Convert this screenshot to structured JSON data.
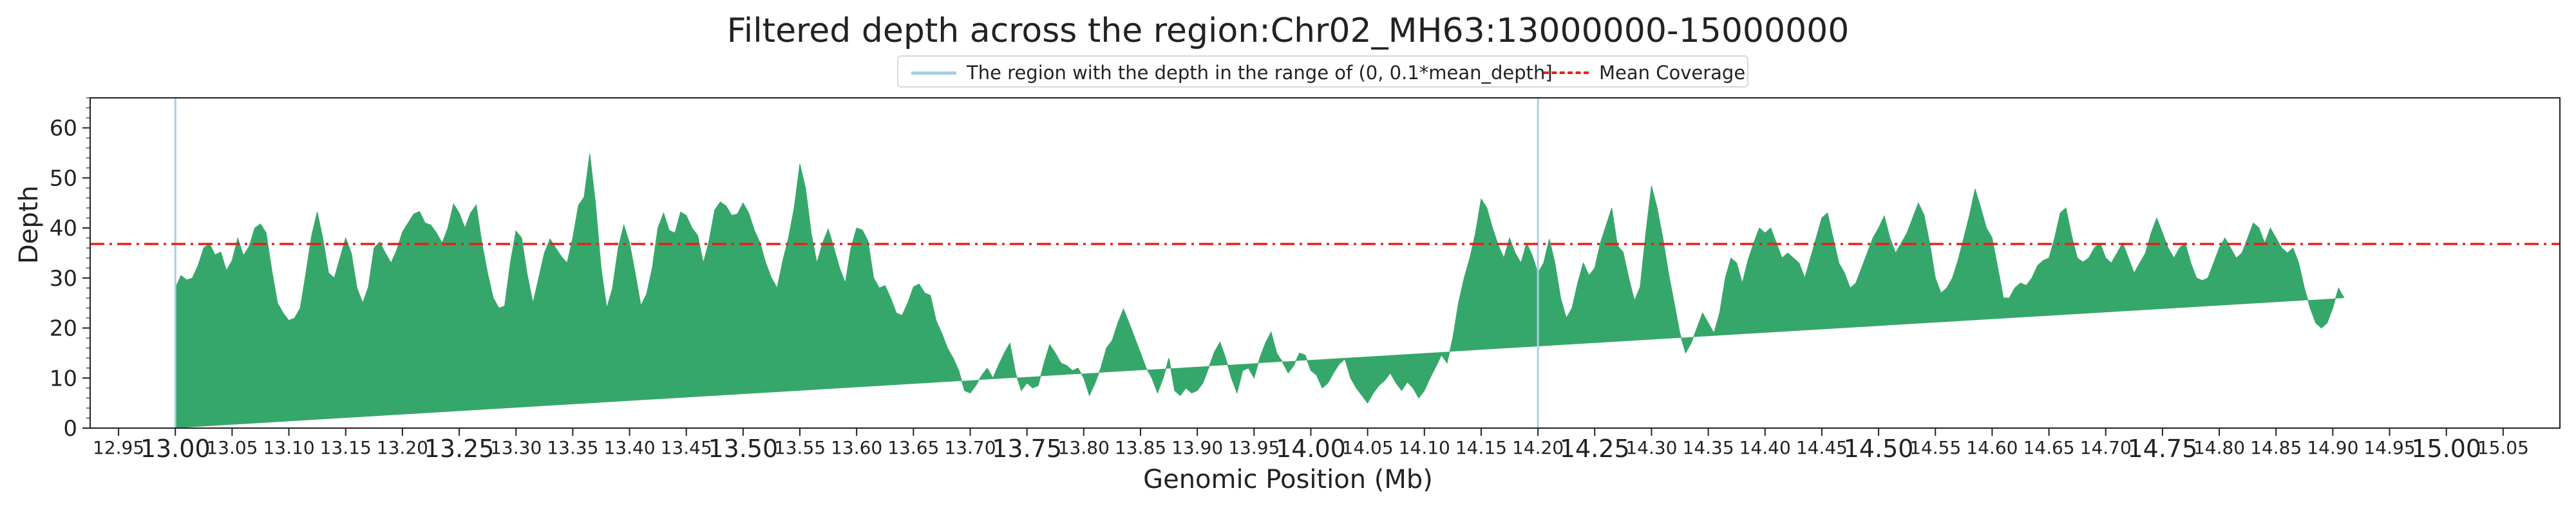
{
  "chart_data": {
    "type": "area",
    "title": "Filtered depth across the region:Chr02_MH63:13000000-15000000",
    "xlabel": "Genomic Position (Mb)",
    "ylabel": "Depth",
    "xlim": [
      12.925,
      15.1
    ],
    "ylim": [
      0,
      66
    ],
    "grid": false,
    "legend_placement": "upper center",
    "legend": [
      {
        "label": "The region with the depth in the range of (0, 0.1*mean_depth]",
        "color": "#a6cfe4",
        "style": "solid"
      },
      {
        "label": "Mean Coverage",
        "color": "#e8201d",
        "style": "dashdot"
      }
    ],
    "mean_coverage": 36.8,
    "fill_color": "#36a76a",
    "low_depth_positions": [
      13.0,
      14.2
    ],
    "y_ticks": [
      0,
      10,
      20,
      30,
      40,
      50,
      60
    ],
    "y_tick_labels": [
      "0",
      "10",
      "20",
      "30",
      "40",
      "50",
      "60"
    ],
    "x_ticks": [
      12.95,
      13.0,
      13.05,
      13.1,
      13.15,
      13.2,
      13.25,
      13.3,
      13.35,
      13.4,
      13.45,
      13.5,
      13.55,
      13.6,
      13.65,
      13.7,
      13.75,
      13.8,
      13.85,
      13.9,
      13.95,
      14.0,
      14.05,
      14.1,
      14.15,
      14.2,
      14.25,
      14.3,
      14.35,
      14.4,
      14.45,
      14.5,
      14.55,
      14.6,
      14.65,
      14.7,
      14.75,
      14.8,
      14.85,
      14.9,
      14.95,
      15.0,
      15.05
    ],
    "x_tick_labels": [
      "12.95",
      "13.00",
      "13.05",
      "13.10",
      "13.15",
      "13.20",
      "13.25",
      "13.30",
      "13.35",
      "13.40",
      "13.45",
      "13.50",
      "13.55",
      "13.60",
      "13.65",
      "13.70",
      "13.75",
      "13.80",
      "13.85",
      "13.90",
      "13.95",
      "14.00",
      "14.05",
      "14.10",
      "14.15",
      "14.20",
      "14.25",
      "14.30",
      "14.35",
      "14.40",
      "14.45",
      "14.50",
      "14.55",
      "14.60",
      "14.65",
      "14.70",
      "14.75",
      "14.80",
      "14.85",
      "14.90",
      "14.95",
      "15.00",
      "15.05"
    ],
    "x_tick_major": [
      "13.00",
      "13.25",
      "13.50",
      "13.75",
      "14.00",
      "14.25",
      "14.50",
      "14.75",
      "15.00"
    ],
    "x": [
      13.0,
      13.005,
      13.01,
      13.015,
      13.02,
      13.025,
      13.03,
      13.035,
      13.04,
      13.045,
      13.05,
      13.055,
      13.06,
      13.065,
      13.07,
      13.075,
      13.08,
      13.085,
      13.09,
      13.095,
      13.1,
      13.105,
      13.11,
      13.115,
      13.12,
      13.125,
      13.13,
      13.135,
      13.14,
      13.145,
      13.15,
      13.155,
      13.16,
      13.165,
      13.17,
      13.175,
      13.18,
      13.185,
      13.19,
      13.195,
      13.2,
      13.205,
      13.21,
      13.215,
      13.22,
      13.225,
      13.23,
      13.235,
      13.24,
      13.245,
      13.25,
      13.255,
      13.26,
      13.265,
      13.27,
      13.275,
      13.28,
      13.285,
      13.29,
      13.295,
      13.3,
      13.305,
      13.31,
      13.315,
      13.32,
      13.325,
      13.33,
      13.335,
      13.34,
      13.345,
      13.35,
      13.355,
      13.36,
      13.365,
      13.37,
      13.375,
      13.38,
      13.385,
      13.39,
      13.395,
      13.4,
      13.405,
      13.41,
      13.415,
      13.42,
      13.425,
      13.43,
      13.435,
      13.44,
      13.445,
      13.45,
      13.455,
      13.46,
      13.465,
      13.47,
      13.475,
      13.48,
      13.485,
      13.49,
      13.495,
      13.5,
      13.505,
      13.51,
      13.515,
      13.52,
      13.525,
      13.53,
      13.535,
      13.54,
      13.545,
      13.55,
      13.555,
      13.56,
      13.565,
      13.57,
      13.575,
      13.58,
      13.585,
      13.59,
      13.595,
      13.6,
      13.605,
      13.61,
      13.615,
      13.62,
      13.625,
      13.63,
      13.635,
      13.64,
      13.645,
      13.65,
      13.655,
      13.66,
      13.665,
      13.67,
      13.675,
      13.68,
      13.685,
      13.69,
      13.695,
      13.7,
      13.705,
      13.71,
      13.715,
      13.72,
      13.725,
      13.73,
      13.735,
      13.74,
      13.745,
      13.75,
      13.755,
      13.76,
      13.765,
      13.77,
      13.775,
      13.78,
      13.785,
      13.79,
      13.795,
      13.8,
      13.805,
      13.81,
      13.815,
      13.82,
      13.825,
      13.83,
      13.835,
      13.84,
      13.845,
      13.85,
      13.855,
      13.86,
      13.865,
      13.87,
      13.875,
      13.88,
      13.885,
      13.89,
      13.895,
      13.9,
      13.905,
      13.91,
      13.915,
      13.92,
      13.925,
      13.93,
      13.935,
      13.94,
      13.945,
      13.95,
      13.955,
      13.96,
      13.965,
      13.97,
      13.975,
      13.98,
      13.985,
      13.99,
      13.995,
      14.0,
      14.005,
      14.01,
      14.015,
      14.02,
      14.025,
      14.03,
      14.035,
      14.04,
      14.045,
      14.05,
      14.055,
      14.06,
      14.065,
      14.07,
      14.075,
      14.08,
      14.085,
      14.09,
      14.095,
      14.1,
      14.105,
      14.11,
      14.115,
      14.12,
      14.125,
      14.13,
      14.135,
      14.14,
      14.145,
      14.15,
      14.155,
      14.16,
      14.165,
      14.17,
      14.175,
      14.18,
      14.185,
      14.19,
      14.195,
      14.2,
      14.205,
      14.21,
      14.215,
      14.22,
      14.225,
      14.23,
      14.235,
      14.24,
      14.245,
      14.25,
      14.255,
      14.26,
      14.265,
      14.27,
      14.275,
      14.28,
      14.285,
      14.29,
      14.295,
      14.3,
      14.305,
      14.31,
      14.315,
      14.32,
      14.325,
      14.33,
      14.335,
      14.34,
      14.345,
      14.35,
      14.355,
      14.36,
      14.365,
      14.37,
      14.375,
      14.38,
      14.385,
      14.39,
      14.395,
      14.4,
      14.405,
      14.41,
      14.415,
      14.42,
      14.425,
      14.43,
      14.435,
      14.44,
      14.445,
      14.45,
      14.455,
      14.46,
      14.465,
      14.47,
      14.475,
      14.48,
      14.485,
      14.49,
      14.495,
      14.5,
      14.505,
      14.51,
      14.515,
      14.52,
      14.525,
      14.53,
      14.535,
      14.54,
      14.545,
      14.55,
      14.555,
      14.56,
      14.565,
      14.57,
      14.575,
      14.58,
      14.585,
      14.59,
      14.595,
      14.6,
      14.605,
      14.61,
      14.615,
      14.62,
      14.625,
      14.63,
      14.635,
      14.64,
      14.645,
      14.65,
      14.655,
      14.66,
      14.665,
      14.67,
      14.675,
      14.68,
      14.685,
      14.69,
      14.695,
      14.7,
      14.705,
      14.71,
      14.715,
      14.72,
      14.725,
      14.73,
      14.735,
      14.74,
      14.745,
      14.75,
      14.755,
      14.76,
      14.765,
      14.77,
      14.775,
      14.78,
      14.785,
      14.79,
      14.795,
      14.8,
      14.805,
      14.81,
      14.815,
      14.82,
      14.825,
      14.83,
      14.835,
      14.84,
      14.845,
      14.85,
      14.855,
      14.86,
      14.865,
      14.87,
      14.875,
      14.88,
      14.885,
      14.89,
      14.895,
      14.9,
      14.905,
      14.91,
      14.915,
      14.92,
      14.925,
      14.93,
      14.935,
      14.94,
      14.945,
      14.95,
      14.955,
      14.96,
      14.965,
      14.97,
      14.975,
      14.98,
      14.985,
      14.99,
      14.995,
      15.0
    ],
    "depth": [
      28.0,
      30.5,
      29.6,
      30.0,
      32.5,
      36.0,
      36.9,
      34.6,
      35.2,
      31.5,
      33.5,
      38.0,
      34.5,
      36.3,
      40.0,
      40.8,
      39.0,
      31.5,
      25.0,
      23.0,
      21.5,
      22.0,
      24.0,
      31.0,
      38.4,
      43.2,
      37.8,
      31.0,
      30.0,
      34.0,
      38.0,
      35.0,
      28.0,
      25.0,
      28.2,
      36.0,
      37.2,
      35.0,
      33.0,
      35.6,
      39.2,
      41.0,
      42.8,
      43.3,
      41.0,
      40.6,
      39.0,
      37.0,
      40.0,
      44.8,
      43.0,
      40.0,
      43.0,
      44.6,
      37.0,
      31.0,
      26.0,
      24.0,
      24.4,
      33.0,
      39.4,
      38.0,
      30.6,
      25.0,
      30.0,
      35.0,
      37.8,
      36.0,
      34.3,
      33.0,
      38.0,
      44.5,
      46.2,
      54.8,
      45.0,
      32.0,
      24.0,
      28.0,
      36.0,
      40.6,
      37.0,
      31.0,
      24.5,
      26.8,
      32.0,
      40.0,
      43.0,
      39.5,
      39.0,
      43.2,
      42.5,
      40.0,
      38.5,
      33.0,
      37.4,
      43.6,
      45.2,
      44.4,
      42.5,
      42.8,
      45.0,
      43.0,
      39.5,
      37.0,
      33.0,
      30.0,
      28.0,
      33.5,
      38.0,
      44.0,
      52.8,
      48.0,
      39.0,
      33.0,
      37.0,
      39.8,
      36.0,
      32.0,
      29.0,
      36.0,
      40.0,
      39.6,
      37.4,
      30.0,
      28.0,
      28.5,
      26.0,
      23.0,
      22.5,
      25.0,
      28.2,
      28.8,
      27.0,
      26.5,
      21.5,
      19.0,
      16.0,
      14.0,
      11.5,
      7.5,
      7.0,
      8.5,
      10.5,
      12.0,
      10.0,
      12.6,
      15.0,
      17.0,
      11.0,
      7.5,
      9.0,
      8.0,
      8.5,
      13.0,
      16.7,
      15.0,
      13.0,
      12.5,
      11.5,
      12.0,
      10.0,
      6.5,
      9.0,
      12.0,
      16.0,
      17.5,
      21.0,
      23.8,
      21.0,
      18.0,
      15.0,
      12.0,
      10.0,
      7.0,
      10.0,
      14.0,
      7.5,
      6.5,
      8.0,
      7.0,
      7.5,
      9.0,
      12.0,
      15.2,
      17.2,
      14.0,
      10.0,
      7.0,
      11.5,
      12.0,
      10.0,
      14.0,
      17.0,
      19.2,
      15.0,
      13.2,
      11.0,
      12.5,
      15.0,
      14.6,
      11.5,
      10.6,
      8.0,
      9.0,
      11.0,
      12.8,
      13.8,
      10.0,
      8.0,
      6.5,
      5.0,
      7.0,
      8.5,
      9.5,
      11.0,
      9.0,
      7.5,
      9.2,
      8.0,
      6.0,
      7.5,
      10.0,
      12.2,
      14.6,
      13.0,
      18.0,
      25.0,
      30.0,
      34.0,
      39.0,
      45.8,
      44.0,
      40.0,
      36.6,
      34.0,
      38.0,
      35.0,
      33.0,
      37.0,
      34.5,
      31.0,
      33.0,
      37.8,
      33.0,
      26.0,
      22.0,
      24.0,
      29.0,
      33.0,
      30.5,
      32.0,
      37.0,
      40.5,
      44.0,
      36.5,
      35.2,
      30.0,
      25.5,
      28.2,
      39.0,
      48.4,
      44.0,
      38.0,
      31.0,
      25.0,
      19.0,
      15.0,
      17.0,
      20.0,
      23.0,
      21.0,
      19.0,
      23.0,
      30.0,
      34.0,
      33.0,
      29.0,
      33.6,
      37.0,
      40.0,
      39.0,
      40.0,
      37.0,
      34.0,
      35.0,
      34.0,
      33.0,
      30.0,
      34.0,
      38.0,
      42.0,
      43.0,
      38.0,
      33.0,
      31.0,
      28.0,
      29.0,
      32.0,
      35.0,
      38.0,
      40.0,
      42.4,
      38.0,
      35.0,
      37.0,
      39.0,
      42.0,
      45.0,
      42.6,
      37.0,
      30.0,
      27.0,
      28.0,
      30.0,
      33.6,
      38.0,
      42.5,
      47.8,
      44.0,
      40.0,
      38.0,
      32.0,
      26.0,
      26.0,
      28.0,
      29.0,
      28.5,
      30.0,
      32.5,
      33.5,
      34.0,
      38.0,
      43.0,
      44.0,
      38.5,
      34.0,
      33.2,
      34.0,
      36.0,
      37.0,
      34.0,
      33.0,
      35.0,
      37.0,
      34.0,
      31.0,
      33.0,
      35.0,
      39.0,
      42.0,
      39.0,
      36.0,
      34.0,
      36.0,
      37.0,
      33.0,
      30.0,
      29.5,
      30.0,
      33.0,
      36.0,
      38.0,
      36.0,
      34.0,
      35.0,
      38.0,
      41.0,
      40.0,
      37.0,
      40.0,
      38.0,
      36.0,
      35.0,
      36.0,
      33.0,
      28.0,
      24.0,
      21.0,
      20.0,
      21.0,
      24.0,
      28.0,
      26.0
    ]
  }
}
